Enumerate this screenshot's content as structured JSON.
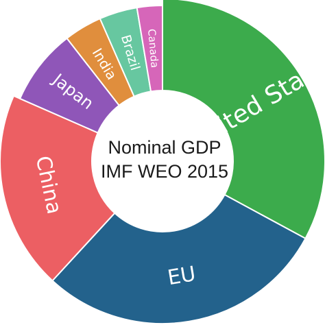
{
  "chart_data": {
    "type": "pie",
    "style": "donut",
    "title_lines": [
      "Nominal GDP",
      "IMF WEO 2015"
    ],
    "series": [
      {
        "label": "United States",
        "value": 25,
        "color": "#3cab4c"
      },
      {
        "label": "EU",
        "value": 22,
        "color": "#23628c"
      },
      {
        "label": "China",
        "value": 15,
        "color": "#ec5f63"
      },
      {
        "label": "Japan",
        "value": 6,
        "color": "#8f56b8"
      },
      {
        "label": "India",
        "value": 3,
        "color": "#e08e3d"
      },
      {
        "label": "Brazil",
        "value": 3,
        "color": "#67c7a0"
      },
      {
        "label": "Canada",
        "value": 2,
        "color": "#d666b9"
      }
    ]
  }
}
